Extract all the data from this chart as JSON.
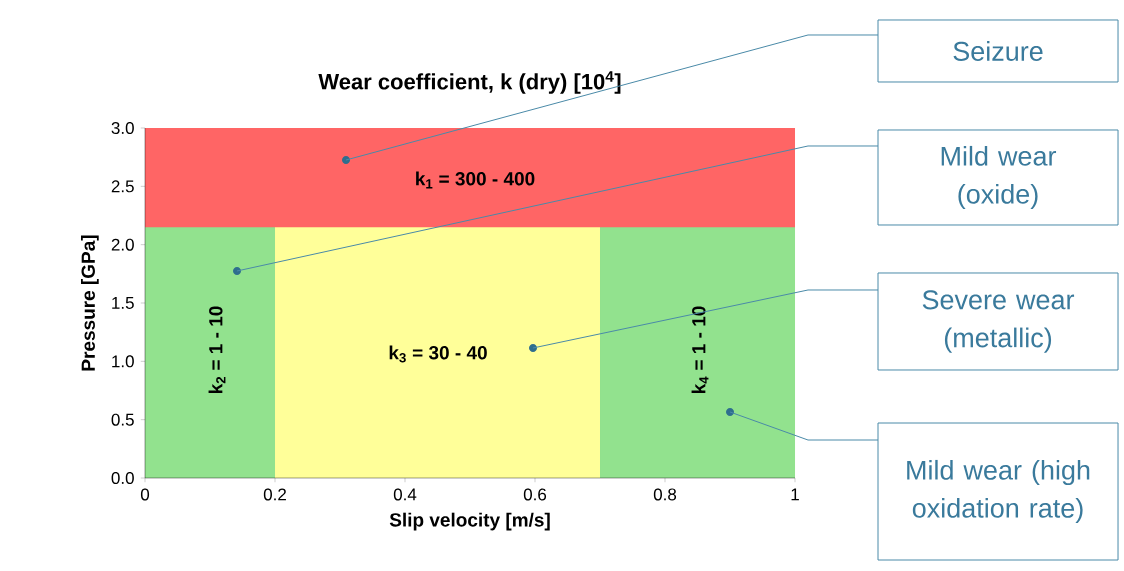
{
  "chart_data": {
    "type": "area",
    "title": "Wear coefficient, k (dry) [10$^{4}$]",
    "xlabel": "Slip velocity [m/s]",
    "ylabel": "Pressure [GPa]",
    "xlim": [
      0,
      1
    ],
    "ylim": [
      0,
      3
    ],
    "xticks": [
      0,
      0.2,
      0.4,
      0.6,
      0.8,
      1
    ],
    "yticks": [
      {
        "value": 0,
        "label": "0.0"
      },
      {
        "value": 0.5,
        "label": "0.5"
      },
      {
        "value": 1,
        "label": "1.0"
      },
      {
        "value": 1.5,
        "label": "1.5"
      },
      {
        "value": 2,
        "label": "2.0"
      },
      {
        "value": 2.5,
        "label": "2.5"
      },
      {
        "value": 3,
        "label": "3.0"
      }
    ],
    "series": [
      {
        "name": "k$_{1}$ = 300 - 400",
        "color": "#ff6565",
        "x": [
          0,
          1
        ],
        "values": [
          3,
          3
        ]
      },
      {
        "name": "k$_{2}$ = 1 - 10",
        "color": "#92e28e",
        "x": [
          0,
          0.2
        ],
        "values": [
          2.15,
          2.15
        ]
      },
      {
        "name": "k$_{3}$ = 30 - 40",
        "color": "#ffff99",
        "x": [
          0.2,
          0.7
        ],
        "values": [
          2.15,
          2.15
        ]
      },
      {
        "name": "k$_{4}$ = 1 - 10",
        "color": "#92e28e",
        "x": [
          0.7,
          1
        ],
        "values": [
          2.15,
          2.15
        ]
      }
    ],
    "annotations": [
      "Seizure",
      "Mild wear (oxide)",
      "Severe wear (metallic)",
      "Mild wear (high oxidation rate)"
    ]
  }
}
